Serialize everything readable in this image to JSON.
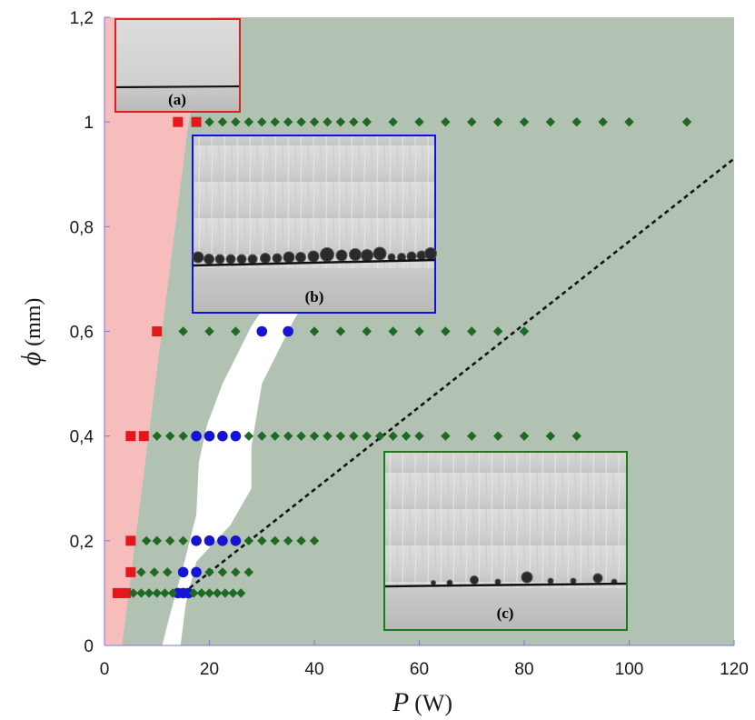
{
  "chart_data": {
    "type": "scatter",
    "title": "",
    "xlabel": "P",
    "xlabel_unit": "(W)",
    "ylabel": "ϕ",
    "ylabel_unit": "(mm)",
    "xlim": [
      0,
      120
    ],
    "ylim": [
      0,
      1.2
    ],
    "x_ticks": [
      0,
      20,
      40,
      60,
      80,
      100,
      120
    ],
    "x_tick_labels": [
      "0",
      "20",
      "40",
      "60",
      "80",
      "100",
      "120"
    ],
    "y_ticks": [
      0,
      0.2,
      0.4,
      0.6,
      0.8,
      1.0,
      1.2
    ],
    "y_tick_labels": [
      "0",
      "0,2",
      "0,4",
      "0,6",
      "0,8",
      "1",
      "1,2"
    ],
    "grid": false,
    "regions": [
      {
        "name": "pink-region",
        "color": "#f7bcbc",
        "polygon": [
          [
            0,
            0
          ],
          [
            3.3,
            0
          ],
          [
            16,
            1.0
          ],
          [
            20.5,
            1.2
          ],
          [
            0,
            1.2
          ]
        ]
      },
      {
        "name": "green-region",
        "color": "#b2c2b2",
        "polygon": [
          [
            3.3,
            0
          ],
          [
            120,
            0
          ],
          [
            120,
            1.2
          ],
          [
            20.5,
            1.2
          ],
          [
            16,
            1.0
          ]
        ]
      },
      {
        "name": "white-band",
        "color": "#ffffff",
        "polygon": [
          [
            11,
            0
          ],
          [
            14.5,
            0
          ],
          [
            15.5,
            0.08
          ],
          [
            17.5,
            0.16
          ],
          [
            24,
            0.23
          ],
          [
            28,
            0.3
          ],
          [
            28,
            0.38
          ],
          [
            30,
            0.5
          ],
          [
            32.5,
            0.55
          ],
          [
            36,
            0.62
          ],
          [
            39,
            0.67
          ],
          [
            32,
            0.67
          ],
          [
            28,
            0.61
          ],
          [
            22.5,
            0.5
          ],
          [
            19.5,
            0.42
          ],
          [
            18,
            0.35
          ],
          [
            17.5,
            0.25
          ],
          [
            15,
            0.15
          ],
          [
            12.5,
            0.06
          ]
        ]
      }
    ],
    "dashed_line": {
      "x": [
        15,
        120
      ],
      "y": [
        0.1,
        0.93
      ]
    },
    "series": [
      {
        "name": "red-squares",
        "marker": "square",
        "color": "#e4181c",
        "points": [
          [
            2.5,
            0.1
          ],
          [
            3.3,
            0.1
          ],
          [
            4.1,
            0.1
          ],
          [
            5,
            0.14
          ],
          [
            5,
            0.2
          ],
          [
            5,
            0.4
          ],
          [
            7.5,
            0.4
          ],
          [
            10,
            0.6
          ],
          [
            14,
            1.0
          ],
          [
            17.5,
            1.0
          ]
        ]
      },
      {
        "name": "blue-circles",
        "marker": "circle",
        "color": "#1414d2",
        "points": [
          [
            14,
            0.1
          ],
          [
            15,
            0.1
          ],
          [
            16,
            0.1
          ],
          [
            15,
            0.14
          ],
          [
            17.5,
            0.14
          ],
          [
            17.5,
            0.2
          ],
          [
            20,
            0.2
          ],
          [
            22.5,
            0.2
          ],
          [
            25,
            0.2
          ],
          [
            17.5,
            0.4
          ],
          [
            20,
            0.4
          ],
          [
            22.5,
            0.4
          ],
          [
            25,
            0.4
          ],
          [
            30,
            0.6
          ],
          [
            35,
            0.6
          ]
        ]
      },
      {
        "name": "green-diamonds",
        "marker": "diamond",
        "color": "#1e6a24",
        "points": [
          [
            5.5,
            0.1
          ],
          [
            7,
            0.1
          ],
          [
            8.5,
            0.1
          ],
          [
            10,
            0.1
          ],
          [
            11.5,
            0.1
          ],
          [
            13,
            0.1
          ],
          [
            17,
            0.1
          ],
          [
            18.5,
            0.1
          ],
          [
            20,
            0.1
          ],
          [
            21.5,
            0.1
          ],
          [
            23,
            0.1
          ],
          [
            24.5,
            0.1
          ],
          [
            26,
            0.1
          ],
          [
            7,
            0.14
          ],
          [
            9.5,
            0.14
          ],
          [
            12,
            0.14
          ],
          [
            20,
            0.14
          ],
          [
            22.5,
            0.14
          ],
          [
            25,
            0.14
          ],
          [
            27.5,
            0.14
          ],
          [
            8,
            0.2
          ],
          [
            10,
            0.2
          ],
          [
            12.5,
            0.2
          ],
          [
            15,
            0.2
          ],
          [
            27.5,
            0.2
          ],
          [
            30,
            0.2
          ],
          [
            32.5,
            0.2
          ],
          [
            35,
            0.2
          ],
          [
            37.5,
            0.2
          ],
          [
            40,
            0.2
          ],
          [
            10,
            0.4
          ],
          [
            12.5,
            0.4
          ],
          [
            15,
            0.4
          ],
          [
            27.5,
            0.4
          ],
          [
            30,
            0.4
          ],
          [
            32.5,
            0.4
          ],
          [
            35,
            0.4
          ],
          [
            37.5,
            0.4
          ],
          [
            40,
            0.4
          ],
          [
            42.5,
            0.4
          ],
          [
            45,
            0.4
          ],
          [
            47.5,
            0.4
          ],
          [
            50,
            0.4
          ],
          [
            52.5,
            0.4
          ],
          [
            55,
            0.4
          ],
          [
            57.5,
            0.4
          ],
          [
            60,
            0.4
          ],
          [
            65,
            0.4
          ],
          [
            70,
            0.4
          ],
          [
            75,
            0.4
          ],
          [
            80,
            0.4
          ],
          [
            85,
            0.4
          ],
          [
            90,
            0.4
          ],
          [
            15,
            0.6
          ],
          [
            20,
            0.6
          ],
          [
            25,
            0.6
          ],
          [
            40,
            0.6
          ],
          [
            45,
            0.6
          ],
          [
            50,
            0.6
          ],
          [
            55,
            0.6
          ],
          [
            60,
            0.6
          ],
          [
            65,
            0.6
          ],
          [
            70,
            0.6
          ],
          [
            75,
            0.6
          ],
          [
            80,
            0.6
          ],
          [
            20,
            1.0
          ],
          [
            22.5,
            1.0
          ],
          [
            25,
            1.0
          ],
          [
            27.5,
            1.0
          ],
          [
            30,
            1.0
          ],
          [
            32.5,
            1.0
          ],
          [
            35,
            1.0
          ],
          [
            37.5,
            1.0
          ],
          [
            40,
            1.0
          ],
          [
            42.5,
            1.0
          ],
          [
            45,
            1.0
          ],
          [
            47.5,
            1.0
          ],
          [
            50,
            1.0
          ],
          [
            55,
            1.0
          ],
          [
            60,
            1.0
          ],
          [
            65,
            1.0
          ],
          [
            70,
            1.0
          ],
          [
            75,
            1.0
          ],
          [
            80,
            1.0
          ],
          [
            85,
            1.0
          ],
          [
            90,
            1.0
          ],
          [
            95,
            1.0
          ],
          [
            100,
            1.0
          ],
          [
            111,
            1.0
          ]
        ]
      }
    ],
    "insets": [
      {
        "label": "(a)",
        "border_color": "#e02020"
      },
      {
        "label": "(b)",
        "border_color": "#1010e0"
      },
      {
        "label": "(c)",
        "border_color": "#1a7a1a"
      }
    ]
  }
}
